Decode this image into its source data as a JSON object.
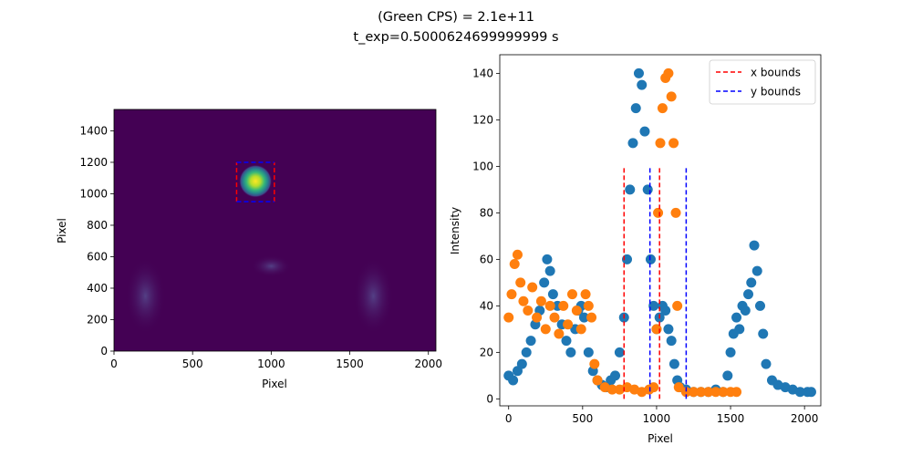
{
  "figure": {
    "title_line1": "(Green CPS) = 2.1e+11",
    "title_line2": "t_exp=0.5000624699999999 s"
  },
  "chart_data": [
    {
      "type": "heatmap",
      "xlabel": "Pixel",
      "ylabel": "Pixel",
      "xlim": [
        0,
        2048
      ],
      "ylim": [
        0,
        1536
      ],
      "xticks": [
        0,
        500,
        1000,
        1500,
        2000
      ],
      "yticks": [
        0,
        200,
        400,
        600,
        800,
        1000,
        1200,
        1400
      ],
      "background_color": "#440154",
      "spot": {
        "x": 900,
        "y": 1080,
        "peak": 140
      },
      "x_bounds_box": {
        "x0": 780,
        "x1": 1020,
        "y0": 950,
        "y1": 1200,
        "color": "#ff0000"
      },
      "y_bounds_box": {
        "x0": 780,
        "x1": 1020,
        "y0": 950,
        "y1": 1200,
        "color": "#0000ff"
      },
      "faint_features": [
        {
          "x": 200,
          "y": 350
        },
        {
          "x": 1650,
          "y": 350
        },
        {
          "x": 1000,
          "y": 540
        }
      ],
      "colormap": "viridis"
    },
    {
      "type": "scatter",
      "xlabel": "Pixel",
      "ylabel": "Intensity",
      "xlim": [
        -60,
        2110
      ],
      "ylim": [
        -3,
        148
      ],
      "xticks": [
        0,
        500,
        1000,
        1500,
        2000
      ],
      "yticks": [
        0,
        20,
        40,
        60,
        80,
        100,
        120,
        140
      ],
      "series": [
        {
          "color": "#1f77b4",
          "points": [
            [
              0,
              10
            ],
            [
              30,
              8
            ],
            [
              60,
              12
            ],
            [
              90,
              15
            ],
            [
              120,
              20
            ],
            [
              150,
              25
            ],
            [
              180,
              32
            ],
            [
              210,
              38
            ],
            [
              240,
              50
            ],
            [
              260,
              60
            ],
            [
              280,
              55
            ],
            [
              300,
              45
            ],
            [
              330,
              40
            ],
            [
              360,
              32
            ],
            [
              390,
              25
            ],
            [
              420,
              20
            ],
            [
              450,
              30
            ],
            [
              470,
              38
            ],
            [
              490,
              40
            ],
            [
              510,
              35
            ],
            [
              540,
              20
            ],
            [
              570,
              12
            ],
            [
              600,
              8
            ],
            [
              630,
              6
            ],
            [
              660,
              5
            ],
            [
              690,
              8
            ],
            [
              720,
              10
            ],
            [
              750,
              20
            ],
            [
              780,
              35
            ],
            [
              800,
              60
            ],
            [
              820,
              90
            ],
            [
              840,
              110
            ],
            [
              860,
              125
            ],
            [
              880,
              140
            ],
            [
              900,
              135
            ],
            [
              920,
              115
            ],
            [
              940,
              90
            ],
            [
              960,
              60
            ],
            [
              980,
              40
            ],
            [
              1000,
              30
            ],
            [
              1020,
              35
            ],
            [
              1040,
              40
            ],
            [
              1060,
              38
            ],
            [
              1080,
              30
            ],
            [
              1100,
              25
            ],
            [
              1120,
              15
            ],
            [
              1140,
              8
            ],
            [
              1160,
              5
            ],
            [
              1200,
              4
            ],
            [
              1250,
              3
            ],
            [
              1300,
              3
            ],
            [
              1350,
              3
            ],
            [
              1400,
              4
            ],
            [
              1450,
              3
            ],
            [
              1480,
              10
            ],
            [
              1500,
              20
            ],
            [
              1520,
              28
            ],
            [
              1540,
              35
            ],
            [
              1560,
              30
            ],
            [
              1580,
              40
            ],
            [
              1600,
              38
            ],
            [
              1620,
              45
            ],
            [
              1640,
              50
            ],
            [
              1660,
              66
            ],
            [
              1680,
              55
            ],
            [
              1700,
              40
            ],
            [
              1720,
              28
            ],
            [
              1740,
              15
            ],
            [
              1780,
              8
            ],
            [
              1820,
              6
            ],
            [
              1870,
              5
            ],
            [
              1920,
              4
            ],
            [
              1970,
              3
            ],
            [
              2020,
              3
            ],
            [
              2045,
              3
            ]
          ]
        },
        {
          "color": "#ff7f0e",
          "points": [
            [
              0,
              35
            ],
            [
              20,
              45
            ],
            [
              40,
              58
            ],
            [
              60,
              62
            ],
            [
              80,
              50
            ],
            [
              100,
              42
            ],
            [
              130,
              38
            ],
            [
              160,
              48
            ],
            [
              190,
              35
            ],
            [
              220,
              42
            ],
            [
              250,
              30
            ],
            [
              280,
              40
            ],
            [
              310,
              35
            ],
            [
              340,
              28
            ],
            [
              370,
              40
            ],
            [
              400,
              32
            ],
            [
              430,
              45
            ],
            [
              460,
              38
            ],
            [
              490,
              30
            ],
            [
              520,
              45
            ],
            [
              540,
              40
            ],
            [
              560,
              35
            ],
            [
              580,
              15
            ],
            [
              600,
              8
            ],
            [
              650,
              5
            ],
            [
              700,
              4
            ],
            [
              750,
              4
            ],
            [
              800,
              5
            ],
            [
              850,
              4
            ],
            [
              900,
              3
            ],
            [
              950,
              4
            ],
            [
              980,
              5
            ],
            [
              1000,
              30
            ],
            [
              1010,
              80
            ],
            [
              1025,
              110
            ],
            [
              1040,
              125
            ],
            [
              1060,
              138
            ],
            [
              1080,
              140
            ],
            [
              1100,
              130
            ],
            [
              1115,
              110
            ],
            [
              1130,
              80
            ],
            [
              1140,
              40
            ],
            [
              1150,
              5
            ],
            [
              1200,
              3
            ],
            [
              1250,
              3
            ],
            [
              1300,
              3
            ],
            [
              1350,
              3
            ],
            [
              1400,
              3
            ],
            [
              1450,
              3
            ],
            [
              1500,
              3
            ],
            [
              1540,
              3
            ]
          ]
        }
      ],
      "vlines": [
        {
          "x": 780,
          "y0": 0,
          "y1": 100,
          "color": "#ff0000",
          "series": "x bounds"
        },
        {
          "x": 1020,
          "y0": 0,
          "y1": 100,
          "color": "#ff0000",
          "series": "x bounds"
        },
        {
          "x": 955,
          "y0": 0,
          "y1": 100,
          "color": "#0000ff",
          "series": "y bounds"
        },
        {
          "x": 1200,
          "y0": 0,
          "y1": 100,
          "color": "#0000ff",
          "series": "y bounds"
        }
      ],
      "legend": {
        "position": "upper right",
        "entries": [
          {
            "label": "x bounds",
            "color": "#ff0000"
          },
          {
            "label": "y bounds",
            "color": "#0000ff"
          }
        ]
      }
    }
  ]
}
